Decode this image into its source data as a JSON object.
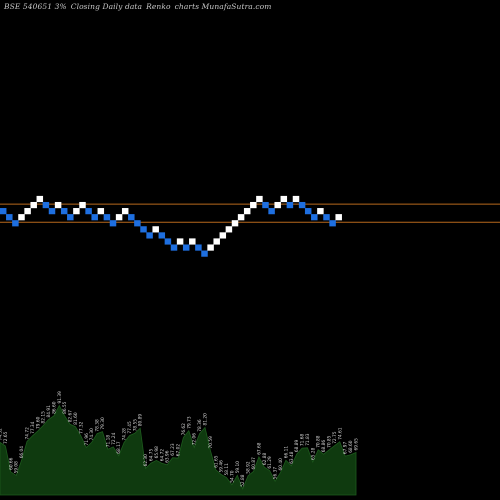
{
  "header": {
    "symbol": "BSE 540651 3%",
    "period": "Closing Daily data",
    "chart_kind": "Renko",
    "site": "charts MunafaSutra.com"
  },
  "chart_data": {
    "type": "renko",
    "grid": false,
    "colors": {
      "up": "#ffffff",
      "down": "#1e6fe0",
      "reference_line": "#b8691c",
      "volume_fill": "#0f3a0f"
    },
    "reference_levels": [
      55.0,
      52.0
    ],
    "bricks": [
      {
        "dir": "down",
        "value": 54.0
      },
      {
        "dir": "down",
        "value": 53.0
      },
      {
        "dir": "down",
        "value": 52.0
      },
      {
        "dir": "up",
        "value": 53.0
      },
      {
        "dir": "up",
        "value": 54.0
      },
      {
        "dir": "up",
        "value": 55.0
      },
      {
        "dir": "up",
        "value": 56.0
      },
      {
        "dir": "down",
        "value": 55.0
      },
      {
        "dir": "down",
        "value": 54.0
      },
      {
        "dir": "up",
        "value": 55.0
      },
      {
        "dir": "down",
        "value": 54.0
      },
      {
        "dir": "down",
        "value": 53.0
      },
      {
        "dir": "up",
        "value": 54.0
      },
      {
        "dir": "up",
        "value": 55.0
      },
      {
        "dir": "down",
        "value": 54.0
      },
      {
        "dir": "down",
        "value": 53.0
      },
      {
        "dir": "up",
        "value": 54.0
      },
      {
        "dir": "down",
        "value": 53.0
      },
      {
        "dir": "down",
        "value": 52.0
      },
      {
        "dir": "up",
        "value": 53.0
      },
      {
        "dir": "up",
        "value": 54.0
      },
      {
        "dir": "down",
        "value": 53.0
      },
      {
        "dir": "down",
        "value": 52.0
      },
      {
        "dir": "down",
        "value": 51.0
      },
      {
        "dir": "down",
        "value": 50.0
      },
      {
        "dir": "up",
        "value": 51.0
      },
      {
        "dir": "down",
        "value": 50.0
      },
      {
        "dir": "down",
        "value": 49.0
      },
      {
        "dir": "down",
        "value": 48.0
      },
      {
        "dir": "up",
        "value": 49.0
      },
      {
        "dir": "down",
        "value": 48.0
      },
      {
        "dir": "up",
        "value": 49.0
      },
      {
        "dir": "down",
        "value": 48.0
      },
      {
        "dir": "down",
        "value": 47.0
      },
      {
        "dir": "up",
        "value": 48.0
      },
      {
        "dir": "up",
        "value": 49.0
      },
      {
        "dir": "up",
        "value": 50.0
      },
      {
        "dir": "up",
        "value": 51.0
      },
      {
        "dir": "up",
        "value": 52.0
      },
      {
        "dir": "up",
        "value": 53.0
      },
      {
        "dir": "up",
        "value": 54.0
      },
      {
        "dir": "up",
        "value": 55.0
      },
      {
        "dir": "up",
        "value": 56.0
      },
      {
        "dir": "down",
        "value": 55.0
      },
      {
        "dir": "down",
        "value": 54.0
      },
      {
        "dir": "up",
        "value": 55.0
      },
      {
        "dir": "up",
        "value": 56.0
      },
      {
        "dir": "down",
        "value": 55.0
      },
      {
        "dir": "up",
        "value": 56.0
      },
      {
        "dir": "down",
        "value": 55.0
      },
      {
        "dir": "down",
        "value": 54.0
      },
      {
        "dir": "down",
        "value": 53.0
      },
      {
        "dir": "up",
        "value": 54.0
      },
      {
        "dir": "down",
        "value": 53.0
      },
      {
        "dir": "down",
        "value": 52.0
      },
      {
        "dir": "up",
        "value": 53.0
      }
    ],
    "volume_labels": [
      "74.32",
      "72.65",
      "60.66",
      "59.08",
      "66.04",
      "74.72",
      "77.34",
      "79.60",
      "82.15",
      "84.91",
      "86.60",
      "91.39",
      "86.55",
      "82.67",
      "81.60",
      "77.32",
      "71.96",
      "74.30",
      "78.38",
      "79.30",
      "71.18",
      "72.24",
      "68.17",
      "74.28",
      "77.45",
      "78.55",
      "80.89",
      "62.30",
      "64.75",
      "65.98",
      "64.72",
      "63.96",
      "67.23",
      "67.02",
      "76.62",
      "79.73",
      "72.06",
      "78.36",
      "81.20",
      "70.59",
      "61.65",
      "59.46",
      "58.11",
      "54.70",
      "59.10",
      "52.88",
      "58.92",
      "60.87",
      "67.68",
      "62.88",
      "61.29",
      "56.37",
      "60.40",
      "66.11",
      "63.48",
      "68.89",
      "71.68",
      "71.83",
      "65.28",
      "70.88",
      "68.86",
      "70.85",
      "72.75",
      "74.61",
      "67.97",
      "68.60",
      "69.65"
    ],
    "volume_series": [
      74.32,
      72.65,
      60.66,
      59.08,
      66.04,
      74.72,
      77.34,
      79.6,
      82.15,
      84.91,
      86.6,
      91.39,
      86.55,
      82.67,
      81.6,
      77.32,
      71.96,
      74.3,
      78.38,
      79.3,
      71.18,
      72.24,
      68.17,
      74.28,
      77.45,
      78.55,
      80.89,
      62.3,
      64.75,
      65.98,
      64.72,
      63.96,
      67.23,
      67.02,
      76.62,
      79.73,
      72.06,
      78.36,
      81.2,
      70.59,
      61.65,
      59.46,
      58.11,
      54.7,
      59.1,
      52.88,
      58.92,
      60.87,
      67.68,
      62.88,
      61.29,
      56.37,
      60.4,
      66.11,
      63.48,
      68.89,
      71.68,
      71.83,
      65.28,
      70.88,
      68.86,
      70.85,
      72.75,
      74.61,
      67.97,
      68.6,
      69.65
    ]
  }
}
